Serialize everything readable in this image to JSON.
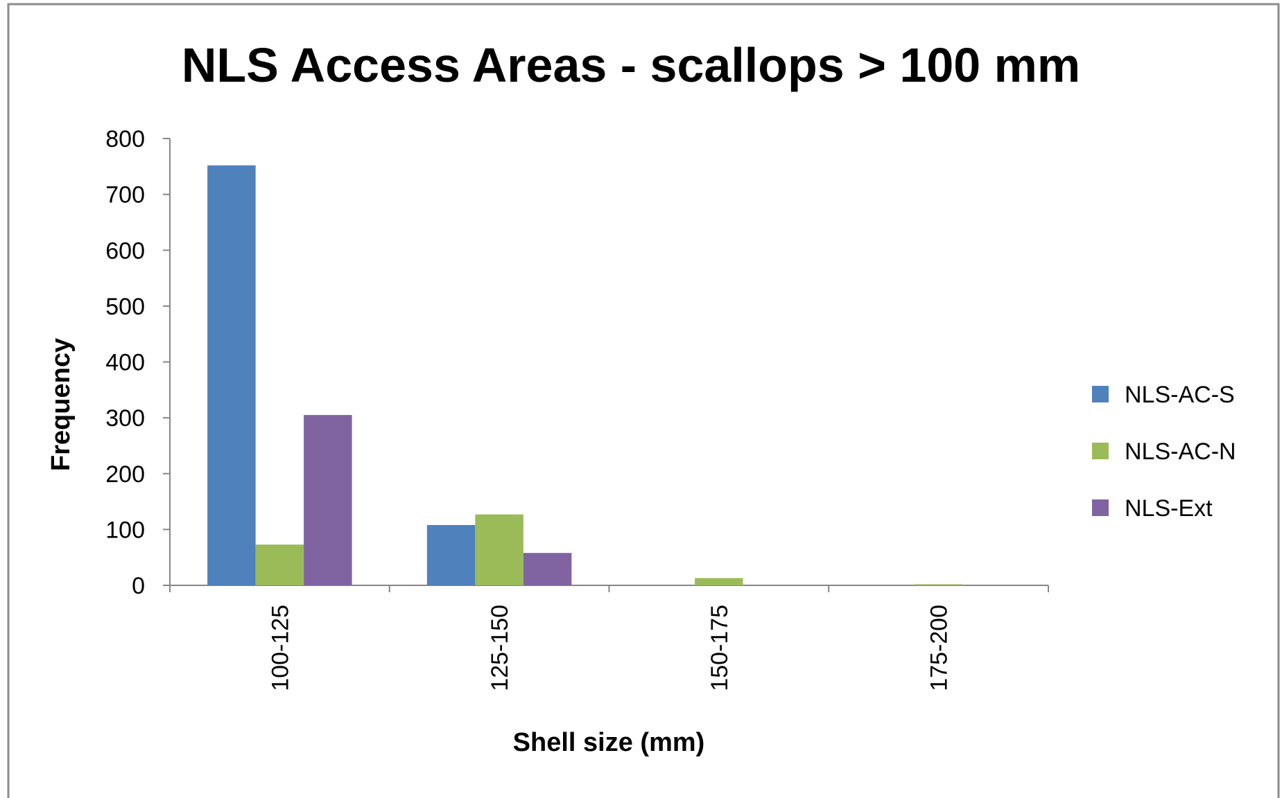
{
  "chart_data": {
    "type": "bar",
    "title": "NLS Access Areas - scallops > 100 mm",
    "x_label": "Shell size (mm)",
    "y_label": "Frequency",
    "categories": [
      "100-125",
      "125-150",
      "150-175",
      "175-200"
    ],
    "series": [
      {
        "name": "NLS-AC-S",
        "color": "#4f81bd",
        "values": [
          752,
          108,
          0,
          0
        ]
      },
      {
        "name": "NLS-AC-N",
        "color": "#9bbb59",
        "values": [
          73,
          127,
          13,
          2
        ]
      },
      {
        "name": "NLS-Ext",
        "color": "#8064a2",
        "values": [
          305,
          58,
          0,
          0
        ]
      }
    ],
    "ylim": [
      0,
      800
    ],
    "yticks": [
      0,
      100,
      200,
      300,
      400,
      500,
      600,
      700,
      800
    ],
    "grid": false,
    "legend": "right"
  }
}
